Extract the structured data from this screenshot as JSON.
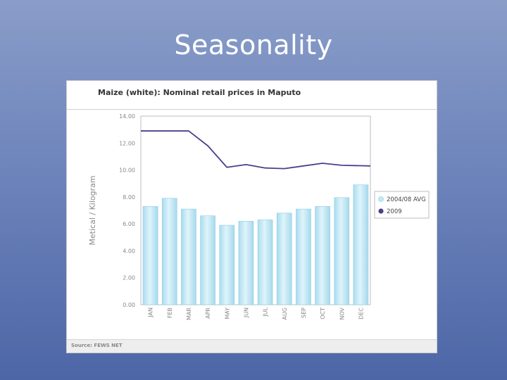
{
  "slide": {
    "title": "Seasonality"
  },
  "chart_data": {
    "type": "bar+line",
    "title": "Maize (white): Nominal retail prices in Maputo",
    "ylabel": "Metical / Kilogram",
    "xlabel": "",
    "ylim": [
      0,
      14
    ],
    "yticks": [
      "0.00",
      "2.00",
      "4.00",
      "6.00",
      "8.00",
      "10.00",
      "12.00",
      "14.00"
    ],
    "categories": [
      "JAN",
      "FEB",
      "MAR",
      "APR",
      "MAY",
      "JUN",
      "JUL",
      "AUG",
      "SEP",
      "OCT",
      "NOV",
      "DEC"
    ],
    "series": [
      {
        "name": "2004/08 AVG",
        "kind": "bar",
        "color": "#b8e6f5",
        "values": [
          7.3,
          7.9,
          7.1,
          6.6,
          5.9,
          6.2,
          6.3,
          6.8,
          7.1,
          7.3,
          7.95,
          8.9
        ]
      },
      {
        "name": "2009",
        "kind": "line",
        "color": "#4b3f8c",
        "values": [
          12.9,
          12.9,
          12.9,
          11.8,
          10.2,
          10.4,
          10.15,
          10.1,
          10.3,
          10.5,
          10.35,
          10.3
        ]
      }
    ],
    "grid": false,
    "legend": "right"
  },
  "source": "Source: FEWS NET"
}
